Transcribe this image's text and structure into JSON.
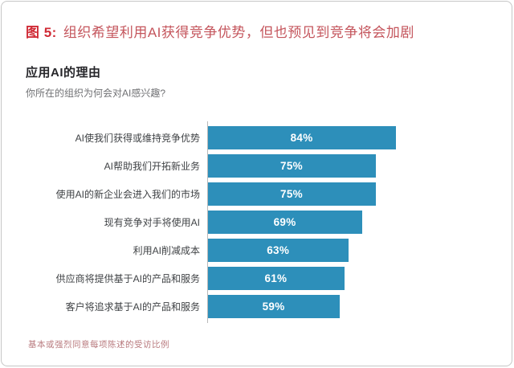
{
  "figure": {
    "label": "图 5:",
    "title": "组织希望利用AI获得竞争优势，但也预见到竞争将会加剧"
  },
  "chart": {
    "heading": "应用AI的理由",
    "question": "你所在的组织为何会对AI感兴趣?",
    "footnote": "基本或强烈同意每项陈述的受访比例"
  },
  "chart_data": {
    "type": "bar",
    "orientation": "horizontal",
    "title": "应用AI的理由",
    "subtitle": "你所在的组织为何会对AI感兴趣?",
    "categories": [
      "AI使我们获得或维持竞争优势",
      "AI帮助我们开拓新业务",
      "使用AI的新企业会进入我们的市场",
      "现有竞争对手将使用AI",
      "利用AI削减成本",
      "供应商将提供基于AI的产品和服务",
      "客户将追求基于AI的产品和服务"
    ],
    "values": [
      84,
      75,
      75,
      69,
      63,
      61,
      59
    ],
    "value_labels": [
      "84%",
      "75%",
      "75%",
      "69%",
      "63%",
      "61%",
      "59%"
    ],
    "xlabel": "",
    "ylabel": "",
    "xlim": [
      0,
      100
    ],
    "grid": "off",
    "legend": "none",
    "footnote": "基本或强烈同意每项陈述的受访比例"
  },
  "colors": {
    "figure_label": "#d02b36",
    "figure_title": "#c4555c",
    "bar": "#2d8fba",
    "bar_value_text": "#ffffff",
    "category_label": "#3f4245",
    "heading": "#26262a",
    "question": "#6f7073",
    "footnote": "#b8797d",
    "axis_line": "#b9b9b9",
    "card_border": "#c6c6c6"
  }
}
